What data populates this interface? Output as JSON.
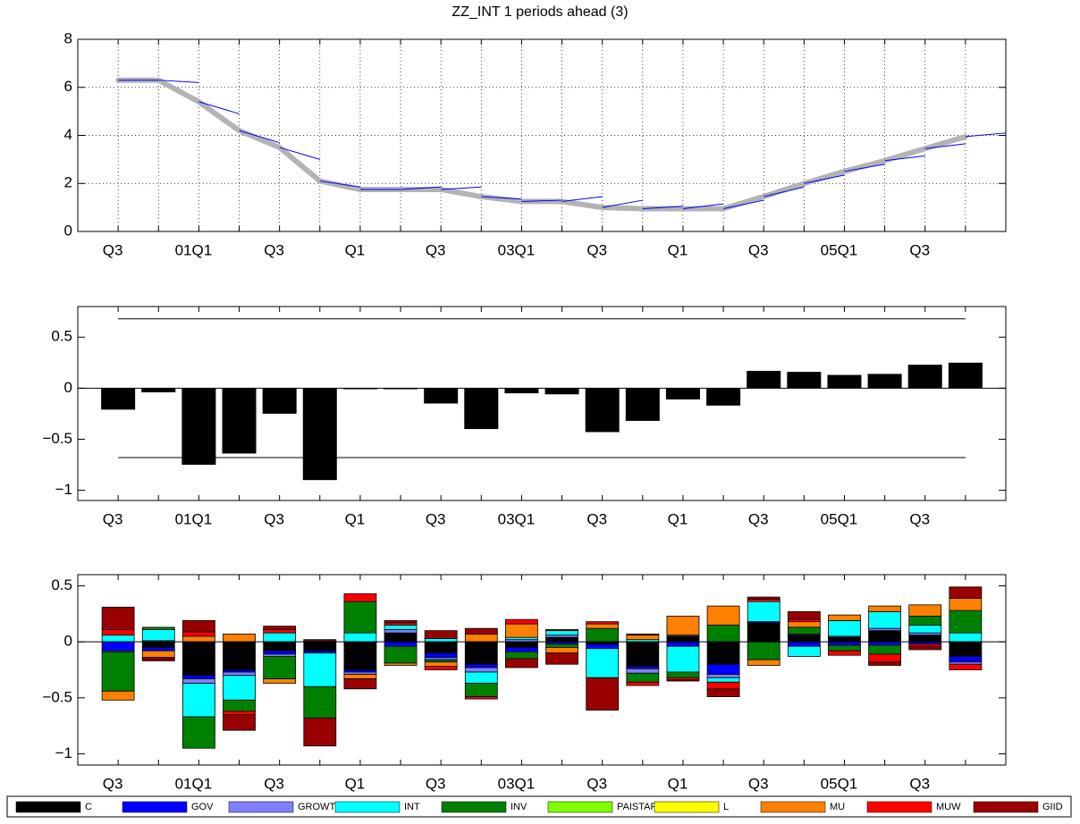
{
  "chart_data": [
    {
      "type": "line",
      "title": "ZZ_INT 1 periods ahead (3)",
      "categories": [
        "Q3",
        null,
        "01Q1",
        null,
        "Q3",
        null,
        "Q1",
        null,
        "Q3",
        null,
        "03Q1",
        null,
        "Q3",
        null,
        "Q1",
        null,
        "Q3",
        null,
        "05Q1",
        null,
        "Q3",
        null,
        null
      ],
      "series": [
        {
          "kind": "line",
          "color": "#b3b3b3",
          "values": [
            6.3,
            6.3,
            5.4,
            4.2,
            3.5,
            2.1,
            1.75,
            1.75,
            1.75,
            1.45,
            1.25,
            1.25,
            1.0,
            0.95,
            0.95,
            0.95,
            1.45,
            2.0,
            2.5,
            2.95,
            3.45,
            3.95,
            null
          ]
        },
        {
          "kind": "forecast",
          "color": "#0000ff",
          "values": [
            null,
            6.3,
            6.2,
            4.9,
            3.7,
            3.0,
            1.85,
            1.75,
            1.85,
            1.85,
            1.35,
            1.3,
            1.45,
            1.3,
            1.05,
            1.15,
            1.3,
            1.85,
            2.35,
            2.8,
            3.15,
            3.65,
            4.1
          ]
        }
      ],
      "ylim": [
        0,
        8
      ],
      "yticks": [
        0,
        2,
        4,
        6,
        8
      ],
      "grid": true
    },
    {
      "type": "bar",
      "categories": [
        "Q3",
        null,
        "01Q1",
        null,
        "Q3",
        null,
        "Q1",
        null,
        "Q3",
        null,
        "03Q1",
        null,
        "Q3",
        null,
        "Q1",
        null,
        "Q3",
        null,
        "05Q1",
        null,
        "Q3",
        null
      ],
      "values": [
        -0.21,
        -0.04,
        -0.75,
        -0.64,
        -0.25,
        -0.9,
        -0.01,
        -0.01,
        -0.15,
        -0.4,
        -0.05,
        -0.06,
        -0.43,
        -0.32,
        -0.11,
        -0.17,
        0.17,
        0.16,
        0.13,
        0.14,
        0.23,
        0.25
      ],
      "color": "#000000",
      "hlines": [
        0.68,
        -0.68
      ],
      "ylim": [
        -1.1,
        0.8
      ],
      "yticks": [
        {
          "value": -1,
          "label": "−1"
        },
        {
          "value": -0.5,
          "label": "−0.5"
        },
        0,
        0.5
      ],
      "grid": false
    },
    {
      "type": "stacked_bar",
      "categories": [
        "Q3",
        null,
        "01Q1",
        null,
        "Q3",
        null,
        "Q1",
        null,
        "Q3",
        null,
        "03Q1",
        null,
        "Q3",
        null,
        "Q1",
        null,
        "Q3",
        null,
        "05Q1",
        null,
        "Q3",
        null
      ],
      "series": [
        {
          "name": "C",
          "color": "#000000",
          "values": [
            0,
            -0.05,
            -0.3,
            -0.25,
            -0.08,
            -0.08,
            -0.25,
            0.08,
            -0.1,
            -0.2,
            -0.05,
            0.04,
            -0.02,
            -0.22,
            0.05,
            -0.2,
            0.17,
            0.06,
            0.04,
            0.1,
            0.06,
            -0.13
          ]
        },
        {
          "name": "GOV",
          "color": "#0000ff",
          "values": [
            -0.08,
            -0.03,
            -0.03,
            -0.02,
            -0.03,
            -0.02,
            -0.02,
            -0.04,
            -0.04,
            -0.03,
            -0.04,
            -0.02,
            -0.04,
            -0.02,
            -0.04,
            -0.09,
            0.01,
            -0.04,
            -0.03,
            -0.03,
            -0.02,
            -0.05
          ]
        },
        {
          "name": "GROWTH",
          "color": "#8080ff",
          "values": [
            -0.01,
            0.01,
            -0.04,
            -0.03,
            -0.02,
            0,
            -0.02,
            0.03,
            -0.02,
            -0.04,
            0.02,
            0.02,
            0,
            -0.04,
            0.01,
            -0.03,
            0,
            0.01,
            0.01,
            0.02,
            0.02,
            -0.02
          ]
        },
        {
          "name": "INT",
          "color": "#00ffff",
          "values": [
            0.06,
            0.1,
            -0.3,
            -0.22,
            0.08,
            -0.3,
            0.08,
            0.04,
            0.03,
            -0.1,
            0.02,
            0.04,
            -0.26,
            0.02,
            -0.23,
            -0.04,
            0.18,
            -0.09,
            0.14,
            0.15,
            0.07,
            0.08
          ]
        },
        {
          "name": "INV",
          "color": "#008000",
          "values": [
            -0.35,
            0.02,
            -0.28,
            -0.1,
            -0.2,
            -0.28,
            0.28,
            -0.15,
            -0.02,
            -0.12,
            -0.06,
            -0.03,
            0.12,
            -0.08,
            -0.05,
            0.15,
            -0.16,
            0.06,
            -0.05,
            -0.08,
            0.08,
            0.2
          ]
        },
        {
          "name": "PAISTAR",
          "color": "#80ff00",
          "values": [
            0,
            0,
            0,
            0,
            0,
            0,
            0,
            0,
            0,
            0,
            0,
            0,
            0,
            0,
            0,
            0,
            0,
            0,
            0,
            0,
            0,
            0
          ]
        },
        {
          "name": "L",
          "color": "#ffff00",
          "values": [
            0,
            0,
            0,
            0,
            0,
            0,
            0,
            0,
            0,
            0,
            0,
            0,
            0,
            0,
            0,
            0,
            0,
            0,
            0,
            0,
            0,
            0
          ]
        },
        {
          "name": "MU",
          "color": "#ff8000",
          "values": [
            -0.08,
            -0.06,
            0.05,
            0.07,
            -0.04,
            0.01,
            -0.04,
            -0.02,
            -0.04,
            0.07,
            0.12,
            -0.05,
            0.04,
            0.04,
            0.17,
            0.17,
            -0.05,
            0.05,
            0.05,
            0.05,
            0.1,
            0.11
          ]
        },
        {
          "name": "MUW",
          "color": "#ff0000",
          "values": [
            0.05,
            -0.01,
            0.04,
            -0.03,
            0.03,
            0.01,
            0.07,
            0.02,
            -0.03,
            -0.02,
            0.04,
            0.01,
            0.02,
            -0.03,
            -0.02,
            -0.06,
            0.02,
            0.02,
            -0.04,
            -0.07,
            -0.02,
            -0.05
          ]
        },
        {
          "name": "GIID",
          "color": "#990000",
          "values": [
            0.2,
            -0.02,
            0.1,
            -0.14,
            0.03,
            -0.25,
            -0.09,
            0.02,
            0.07,
            0.05,
            -0.08,
            -0.1,
            -0.29,
            0.01,
            -0.01,
            -0.07,
            0.02,
            0.07,
            0,
            -0.03,
            -0.03,
            0.1
          ]
        }
      ],
      "ylim": [
        -1.1,
        0.6
      ],
      "yticks": [
        {
          "value": -1,
          "label": "−1"
        },
        {
          "value": -0.5,
          "label": "−0.5"
        },
        0,
        0.5
      ],
      "grid": false,
      "legend": "bottom"
    }
  ]
}
